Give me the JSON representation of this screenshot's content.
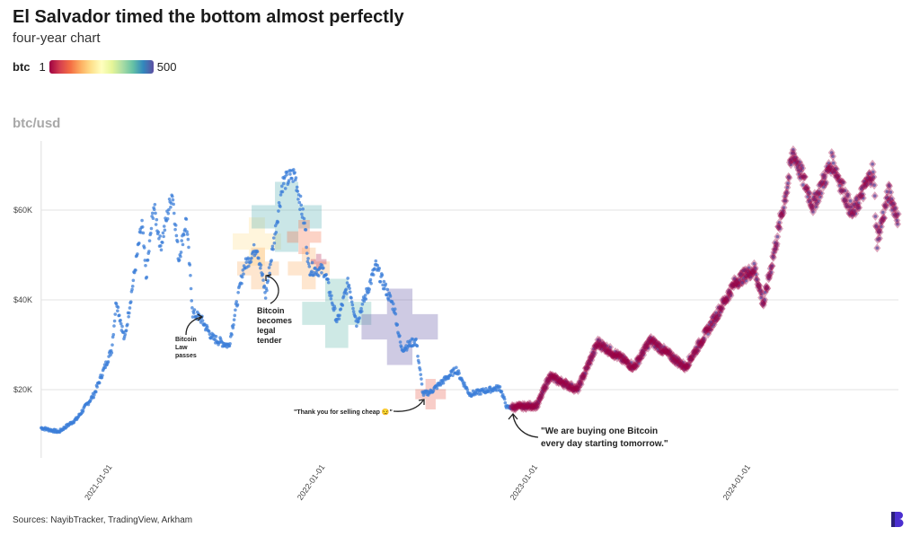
{
  "header": {
    "title": "El Salvador timed the bottom almost perfectly",
    "subtitle": "four-year chart"
  },
  "legend": {
    "label": "btc",
    "min_label": "1",
    "max_label": "500",
    "colormap": [
      "#9e0142",
      "#d53e4f",
      "#f46d43",
      "#fdae61",
      "#fee08b",
      "#ffffbf",
      "#e6f598",
      "#abdda4",
      "#66c2a5",
      "#3288bd",
      "#5e4fa2"
    ]
  },
  "footer": {
    "sources": "Sources: NayibTracker, TradingView, Arkham",
    "logo": "B"
  },
  "chart_data": {
    "type": "scatter",
    "ylabel": "btc/usd",
    "ylim": [
      0,
      75000
    ],
    "xlim": [
      "2020-09-01",
      "2024-09-10"
    ],
    "y_ticks": [
      {
        "value": 20000,
        "label": "$20K"
      },
      {
        "value": 40000,
        "label": "$40K"
      },
      {
        "value": 60000,
        "label": "$60K"
      }
    ],
    "x_ticks": [
      "2021-01-01",
      "2022-01-01",
      "2023-01-01",
      "2024-01-01"
    ],
    "grid": "horizontal",
    "price_color": "#3b7dd8",
    "price_series": [
      [
        "2020-09-01",
        11500
      ],
      [
        "2020-10-01",
        10600
      ],
      [
        "2020-11-01",
        13500
      ],
      [
        "2020-12-01",
        19000
      ],
      [
        "2020-12-31",
        29000
      ],
      [
        "2021-01-08",
        40000
      ],
      [
        "2021-01-22",
        31000
      ],
      [
        "2021-02-08",
        46000
      ],
      [
        "2021-02-21",
        57000
      ],
      [
        "2021-02-28",
        45000
      ],
      [
        "2021-03-13",
        61000
      ],
      [
        "2021-03-25",
        52000
      ],
      [
        "2021-04-14",
        64000
      ],
      [
        "2021-04-25",
        49000
      ],
      [
        "2021-05-08",
        58000
      ],
      [
        "2021-05-19",
        37000
      ],
      [
        "2021-06-01",
        36000
      ],
      [
        "2021-06-22",
        31500
      ],
      [
        "2021-07-20",
        29800
      ],
      [
        "2021-08-14",
        47000
      ],
      [
        "2021-09-06",
        52000
      ],
      [
        "2021-09-21",
        41000
      ],
      [
        "2021-10-20",
        66000
      ],
      [
        "2021-11-10",
        68000
      ],
      [
        "2021-11-28",
        56000
      ],
      [
        "2021-12-04",
        47000
      ],
      [
        "2021-12-31",
        46500
      ],
      [
        "2022-01-22",
        35000
      ],
      [
        "2022-02-10",
        44000
      ],
      [
        "2022-02-24",
        35000
      ],
      [
        "2022-03-29",
        47500
      ],
      [
        "2022-04-30",
        38000
      ],
      [
        "2022-05-12",
        29000
      ],
      [
        "2022-06-06",
        31000
      ],
      [
        "2022-06-18",
        19000
      ],
      [
        "2022-07-01",
        19500
      ],
      [
        "2022-08-14",
        24500
      ],
      [
        "2022-09-06",
        19000
      ],
      [
        "2022-10-28",
        20500
      ],
      [
        "2022-11-09",
        16000
      ],
      [
        "2022-12-31",
        16500
      ],
      [
        "2023-01-21",
        23000
      ],
      [
        "2023-03-10",
        20000
      ],
      [
        "2023-04-14",
        30500
      ],
      [
        "2023-06-15",
        25000
      ],
      [
        "2023-07-13",
        31000
      ],
      [
        "2023-09-11",
        25000
      ],
      [
        "2023-10-23",
        34000
      ],
      [
        "2023-12-06",
        44000
      ],
      [
        "2024-01-08",
        47000
      ],
      [
        "2024-01-23",
        39000
      ],
      [
        "2024-02-28",
        62000
      ],
      [
        "2024-03-14",
        73000
      ],
      [
        "2024-04-17",
        61000
      ],
      [
        "2024-05-20",
        71000
      ],
      [
        "2024-06-24",
        59000
      ],
      [
        "2024-07-29",
        69000
      ],
      [
        "2024-08-05",
        53000
      ],
      [
        "2024-08-25",
        64000
      ],
      [
        "2024-09-10",
        58000
      ]
    ],
    "purchases": [
      {
        "date": "2021-09-06",
        "price": 53000,
        "btc": 200
      },
      {
        "date": "2021-09-08",
        "price": 47000,
        "btc": 150
      },
      {
        "date": "2021-10-27",
        "price": 58500,
        "btc": 420
      },
      {
        "date": "2021-11-26",
        "price": 54000,
        "btc": 100
      },
      {
        "date": "2021-12-04",
        "price": 47000,
        "btc": 150
      },
      {
        "date": "2021-12-21",
        "price": 48500,
        "btc": 21
      },
      {
        "date": "2022-01-21",
        "price": 37000,
        "btc": 410
      },
      {
        "date": "2022-05-09",
        "price": 34000,
        "btc": 500
      },
      {
        "date": "2022-07-01",
        "price": 19000,
        "btc": 80
      }
    ],
    "daily_purchases": {
      "start": "2022-11-17",
      "end": "2024-09-10",
      "btc": 1
    },
    "annotations": [
      {
        "text": [
          "Bitcoin",
          "Law",
          "passes"
        ]
      },
      {
        "text": [
          "Bitcoin",
          "becomes",
          "legal",
          "tender"
        ]
      },
      {
        "text": [
          "\"Thank you for selling cheap 😏\""
        ]
      },
      {
        "text": [
          "\"We are buying one Bitcoin",
          "every day starting tomorrow.\""
        ]
      }
    ]
  }
}
